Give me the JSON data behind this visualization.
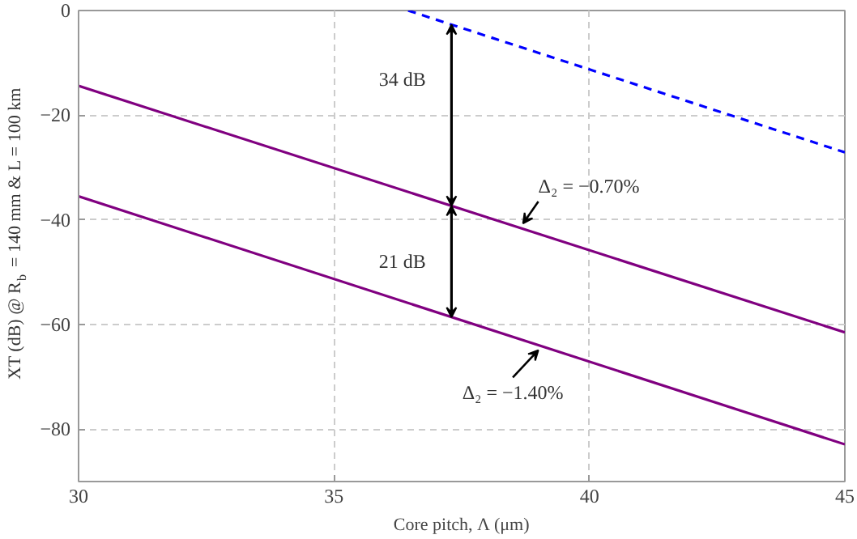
{
  "chart_data": {
    "type": "line",
    "xlabel": "Core pitch, Λ (μm)",
    "ylabel": "XT (dB) @ R$_{b}$ = 140 mm & L = 100 km",
    "xlim": [
      30,
      45
    ],
    "ylim": [
      -90,
      0
    ],
    "xticks": [
      30,
      35,
      40,
      45
    ],
    "yticks": [
      0,
      -20,
      -40,
      -60,
      -80
    ],
    "grid": true,
    "series": [
      {
        "x": [
          30,
          45
        ],
        "values": [
          -14.4,
          -61.5
        ],
        "color": "#800080",
        "line_style": "solid"
      },
      {
        "x": [
          30,
          45
        ],
        "values": [
          -35.5,
          -82.9
        ],
        "color": "#800080",
        "line_style": "solid"
      },
      {
        "x": [
          36.45,
          45
        ],
        "values": [
          0,
          -27.1
        ],
        "color": "#0000ff",
        "line_style": "dashed"
      }
    ],
    "annotations": [
      {
        "text": "34 dB",
        "x": 37.3,
        "y": -2.7
      },
      {
        "text": "21 dB",
        "x": 37.3,
        "y": -58.6
      },
      {
        "text": "Δ₂ = −0.70%",
        "x": 38.7,
        "y": -41.7
      },
      {
        "text": "Δ₂ = −1.40%",
        "x": 39.0,
        "y": -63.9
      }
    ]
  }
}
